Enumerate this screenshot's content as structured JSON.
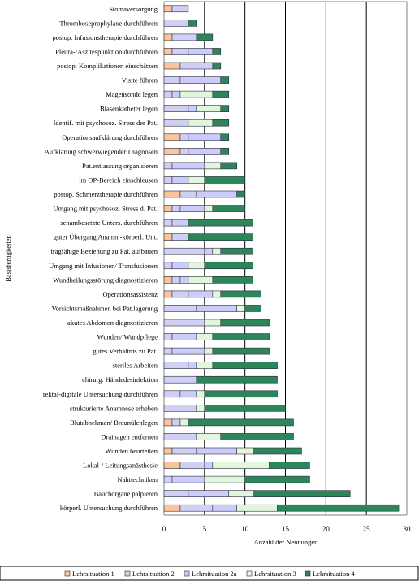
{
  "chart_data": {
    "type": "bar",
    "orientation": "horizontal",
    "stacked": true,
    "xlabel": "Anzahl der Nennungen",
    "ylabel": "Basisfertigkeiten",
    "xlim": [
      0,
      30
    ],
    "xticks": [
      0,
      5,
      10,
      15,
      20,
      25,
      30
    ],
    "grid": true,
    "legend_position": "bottom",
    "categories": [
      "Stomaversorgung",
      "Thromboseprophylaxe durchführen",
      "postop. Infusionstherapie durchführen",
      "Pleura-/Aszitespunktion durchführen",
      "postop. Komplikationen einschätzen",
      "Visite führen",
      "Magensonde legen",
      "Blasenkatheter legen",
      "Identif. mit psychosoz. Stress der Pat.",
      "Operationsaufklärung durchführen",
      "Aufklärung schwerwiegender Diagnosen",
      "Pat.entlassung organisieren",
      "im OP-Bereich einschleusen",
      "postop. Schmerztherapie durchführen",
      "Umgang mit psychosoz. Stress d. Pat.",
      "schambesetzte Unters. durchführen",
      "guter Übergang Anamn.-körperl. Unt.",
      "tragfähige Beziehung zu Pat. aufbauen",
      "Umgang mit Infusionen/ Transfusionen",
      "Wundheilungsstörung diagnostizieren",
      "Operationsassistenz",
      "Vorsichtsmaßnahmen bei Pat.lagerung",
      "akutes Abdomen diagnostizieren",
      "Wunden/ Wundpflege",
      "gutes Verhältnis zu Pat.",
      "steriles Arbeiten",
      "chirurg. Händedesinfektion",
      "rektal-digitale Untersuchung durchführen",
      "strukturierte Anamnese erheben",
      "Blutabnehmen/ Braunülenlegen",
      "Drainagen entfernen",
      "Wunden beurteilen",
      "Lokal-/ Leitungsanästhesie",
      "Nahttechniken",
      "Bauchorgane palpieren",
      "körperl. Untersuchung durchführen"
    ],
    "series": [
      {
        "name": "Lehrsituation 1",
        "color": "#f9c59a",
        "values": [
          1,
          0,
          1,
          1,
          2,
          0,
          0,
          0,
          0,
          2,
          2,
          0,
          0,
          2,
          1,
          0,
          1,
          0,
          0,
          1,
          1,
          0,
          0,
          0,
          0,
          0,
          0,
          0,
          0,
          1,
          0,
          1,
          2,
          0,
          0,
          2
        ]
      },
      {
        "name": "Lehrsituation 2",
        "color": "#cfd0f4",
        "values": [
          2,
          3,
          3,
          2,
          4,
          2,
          1,
          3,
          3,
          1,
          1,
          1,
          1,
          2,
          1,
          1,
          2,
          5,
          1,
          1,
          2,
          4,
          5,
          1,
          1,
          3,
          4,
          2,
          4,
          1,
          4,
          3,
          3,
          1,
          3,
          4
        ]
      },
      {
        "name": "Lehrsituation 2a",
        "color": "#ccccfb",
        "values": [
          0,
          0,
          0,
          3,
          0,
          5,
          1,
          1,
          0,
          4,
          4,
          4,
          2,
          5,
          3,
          2,
          0,
          1,
          2,
          1,
          3,
          5,
          0,
          3,
          4,
          1,
          0,
          2,
          0,
          0,
          0,
          5,
          1,
          4,
          5,
          3
        ]
      },
      {
        "name": "Lehrsituation 3",
        "color": "#e1f7dc",
        "values": [
          0,
          0,
          0,
          0,
          0,
          0,
          4,
          3,
          3,
          0,
          0,
          2,
          2,
          0,
          1,
          0,
          0,
          1,
          2,
          3,
          1,
          1,
          2,
          2,
          1,
          2,
          0,
          1,
          1,
          1,
          3,
          2,
          7,
          5,
          3,
          5
        ]
      },
      {
        "name": "Lehrsituation 4",
        "color": "#2d855a",
        "values": [
          0,
          1,
          2,
          1,
          1,
          1,
          2,
          1,
          2,
          1,
          1,
          2,
          5,
          1,
          4,
          8,
          8,
          4,
          6,
          5,
          5,
          2,
          6,
          7,
          7,
          8,
          10,
          9,
          10,
          13,
          9,
          6,
          5,
          8,
          12,
          15
        ]
      }
    ]
  },
  "colors": {
    "bar_stroke": "#2a2a3a",
    "grid": "#000000",
    "frame": "#808080"
  }
}
